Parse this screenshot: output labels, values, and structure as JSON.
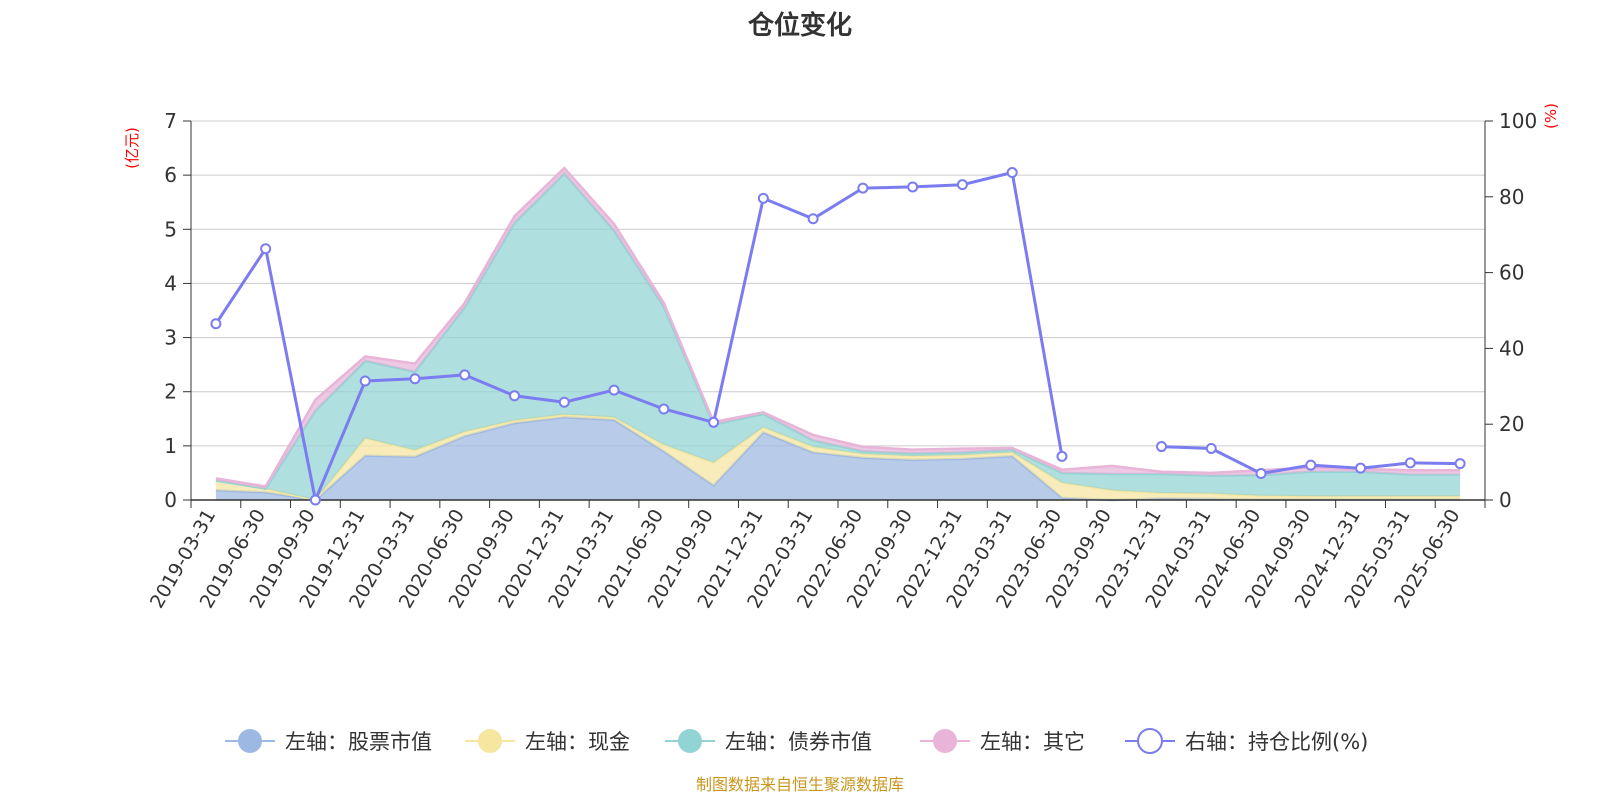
{
  "colors": {
    "stock": "#9db8e2",
    "cash": "#f5e6a0",
    "bond": "#92d3d4",
    "other": "#e8b4d8",
    "ratio": "#7b7cf0",
    "unit_text": "#ff0000",
    "source_text": "#c8961e"
  },
  "chart_data": {
    "type": "area",
    "title": "仓位变化",
    "left_unit": "(亿元)",
    "right_unit": "(%)",
    "left_ylim": [
      0,
      7
    ],
    "left_ticks": [
      "0",
      "1",
      "2",
      "3",
      "4",
      "5",
      "6",
      "7"
    ],
    "right_ylim": [
      0,
      100
    ],
    "right_ticks": [
      "0",
      "20",
      "40",
      "60",
      "80",
      "100"
    ],
    "grid": true,
    "legend_position": "bottom",
    "categories": [
      "2019-03-31",
      "2019-06-30",
      "2019-09-30",
      "2019-12-31",
      "2020-03-31",
      "2020-06-30",
      "2020-09-30",
      "2020-12-31",
      "2021-03-31",
      "2021-06-30",
      "2021-09-30",
      "2021-12-31",
      "2022-03-31",
      "2022-06-30",
      "2022-09-30",
      "2022-12-31",
      "2023-03-31",
      "2023-06-30",
      "2023-09-30",
      "2023-12-31",
      "2024-03-31",
      "2024-06-30",
      "2024-09-30",
      "2024-12-31",
      "2025-03-31",
      "2025-06-30"
    ],
    "series": [
      {
        "name": "左轴：股票市值",
        "axis": "left",
        "kind": "area",
        "color_key": "stock",
        "values": [
          0.18,
          0.14,
          0.0,
          0.82,
          0.8,
          1.18,
          1.42,
          1.53,
          1.48,
          0.9,
          0.27,
          1.25,
          0.88,
          0.78,
          0.74,
          0.76,
          0.81,
          0.04,
          null,
          0.03,
          0.02,
          0.01,
          0.01,
          0.01,
          0.01,
          0.01
        ]
      },
      {
        "name": "左轴：现金",
        "axis": "left",
        "kind": "area",
        "color_key": "cash",
        "values": [
          0.18,
          0.07,
          0.0,
          0.32,
          0.12,
          0.08,
          0.05,
          0.05,
          0.05,
          0.12,
          0.42,
          0.09,
          0.1,
          0.07,
          0.07,
          0.07,
          0.07,
          0.28,
          0.18,
          0.1,
          0.1,
          0.07,
          0.06,
          0.06,
          0.06,
          0.06
        ]
      },
      {
        "name": "左轴：债券市值",
        "axis": "left",
        "kind": "area",
        "color_key": "bond",
        "values": [
          0.0,
          0.0,
          1.65,
          1.43,
          1.45,
          2.3,
          3.65,
          4.45,
          3.45,
          2.55,
          0.7,
          0.25,
          0.12,
          0.05,
          0.05,
          0.05,
          0.05,
          0.18,
          0.3,
          0.35,
          0.33,
          0.38,
          0.45,
          0.45,
          0.4,
          0.4
        ]
      },
      {
        "name": "左轴：其它",
        "axis": "left",
        "kind": "area",
        "color_key": "other",
        "values": [
          0.04,
          0.04,
          0.2,
          0.08,
          0.15,
          0.08,
          0.12,
          0.1,
          0.12,
          0.07,
          0.05,
          0.03,
          0.1,
          0.08,
          0.07,
          0.07,
          0.03,
          0.06,
          0.15,
          0.04,
          0.05,
          0.09,
          0.08,
          0.05,
          0.08,
          0.08
        ]
      },
      {
        "name": "右轴：持仓比例(%)",
        "axis": "right",
        "kind": "line",
        "color_key": "ratio",
        "values": [
          46.5,
          66.3,
          0.0,
          31.4,
          32.0,
          33.0,
          27.5,
          25.8,
          29.0,
          24.0,
          20.5,
          79.6,
          74.2,
          82.3,
          82.6,
          83.2,
          86.4,
          11.5,
          null,
          14.1,
          13.6,
          7.0,
          9.2,
          8.4,
          9.8,
          9.6
        ]
      }
    ]
  },
  "footer": {
    "source": "制图数据来自恒生聚源数据库"
  }
}
